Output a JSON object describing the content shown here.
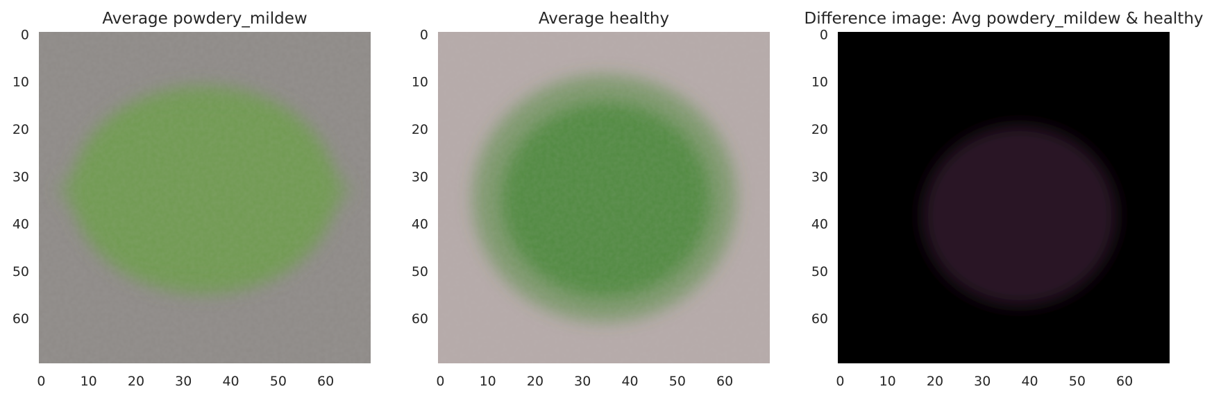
{
  "chart_data": [
    {
      "type": "heatmap",
      "title": "Average powdery_mildew",
      "xlabel": "",
      "ylabel": "",
      "xlim": [
        0,
        69
      ],
      "ylim": [
        69,
        0
      ],
      "xticks": [
        "0",
        "10",
        "20",
        "30",
        "40",
        "50",
        "60"
      ],
      "yticks": [
        "0",
        "10",
        "20",
        "30",
        "40",
        "50",
        "60"
      ],
      "grid": false,
      "content": "averaged RGB image",
      "background_color": "#8e8a87",
      "foreground_color": "#6f9a4f"
    },
    {
      "type": "heatmap",
      "title": "Average healthy",
      "xlabel": "",
      "ylabel": "",
      "xlim": [
        0,
        69
      ],
      "ylim": [
        69,
        0
      ],
      "xticks": [
        "0",
        "10",
        "20",
        "30",
        "40",
        "50",
        "60"
      ],
      "yticks": [
        "0",
        "10",
        "20",
        "30",
        "40",
        "50",
        "60"
      ],
      "grid": false,
      "content": "averaged RGB image",
      "background_color": "#b6aaa9",
      "foreground_color": "#4e8a3c"
    },
    {
      "type": "heatmap",
      "title": "Difference image: Avg powdery_mildew & healthy",
      "xlabel": "",
      "ylabel": "",
      "xlim": [
        0,
        69
      ],
      "ylim": [
        69,
        0
      ],
      "xticks": [
        "0",
        "10",
        "20",
        "30",
        "40",
        "50",
        "60"
      ],
      "yticks": [
        "0",
        "10",
        "20",
        "30",
        "40",
        "50",
        "60"
      ],
      "grid": false,
      "content": "difference RGB image",
      "background_color": "#000000",
      "foreground_color": "#2a1428"
    }
  ]
}
